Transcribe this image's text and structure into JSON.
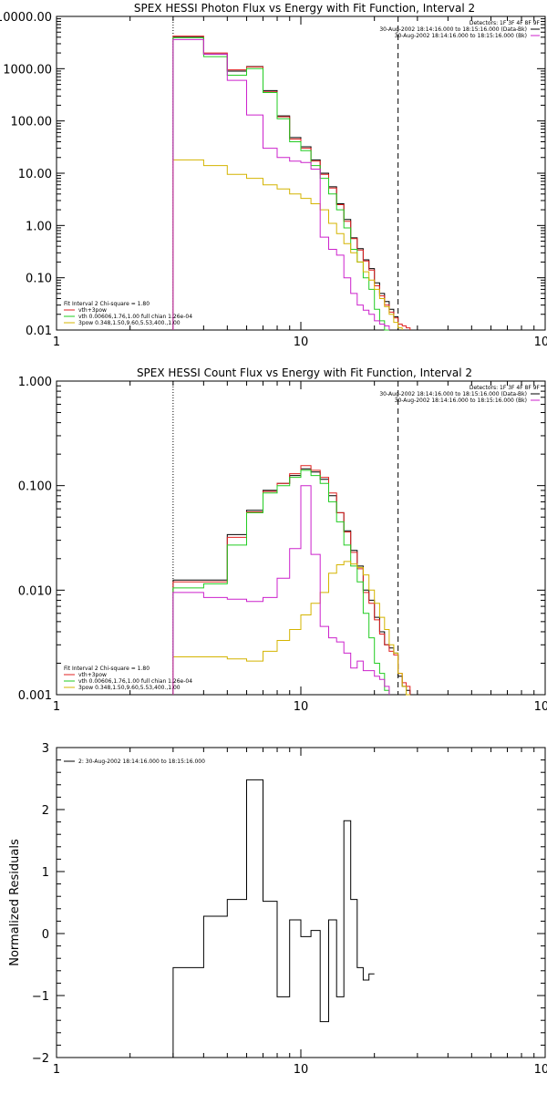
{
  "chart_data": [
    {
      "type": "line",
      "title": "SPEX HESSI Photon Flux vs Energy with Fit Function, Interval 2",
      "xscale": "log",
      "yscale": "log",
      "xlim": [
        1,
        100
      ],
      "ylim": [
        0.01,
        10000
      ],
      "x_tick_labels": [
        "1",
        "10",
        "100"
      ],
      "y_tick_labels": [
        "0.01",
        "0.10",
        "1.00",
        "10.00",
        "100.00",
        "1000.00",
        "10000.00"
      ],
      "info_lines": [
        "Detectors: 1F 3F 4F 8F 9F",
        "30-Aug-2002 18:14:16.000 to 18:15:16.000 (Data-Bk)",
        "30-Aug-2002 18:14:16.000 to 18:15:16.000 (Bk)"
      ],
      "legend_lines": [
        "Fit Interval  2   Chi-square = 1.80",
        "vth+3pow",
        "vth 0.00606,1.76,1.00  full chian 1.26e-04",
        "3pow 0.348,1.50,9.60,5.53,400.,1.00"
      ],
      "legend_colors": [
        "#000000",
        "#e02020",
        "#22cc22",
        "#d4b400"
      ],
      "vlines": [
        3,
        25
      ],
      "edges": [
        3,
        4,
        5,
        6,
        7,
        8,
        9,
        10,
        11,
        12,
        13,
        14,
        15,
        16,
        17,
        18,
        19,
        20,
        21,
        22,
        23,
        24,
        25,
        26,
        27,
        28,
        29,
        30
      ],
      "series": [
        {
          "role": "data",
          "color": "#000000",
          "values": [
            4000,
            1900,
            900,
            1100,
            380,
            125,
            48,
            32,
            18,
            10,
            5.5,
            2.6,
            1.3,
            0.58,
            0.36,
            0.22,
            0.15,
            0.08,
            0.05,
            0.035,
            0.025,
            0.018,
            null,
            null,
            null,
            null,
            null
          ]
        },
        {
          "role": "model",
          "color": "#e02020",
          "values": [
            4200,
            2000,
            950,
            1080,
            360,
            120,
            45,
            30,
            17,
            9.5,
            5.2,
            2.5,
            1.2,
            0.56,
            0.34,
            0.21,
            0.14,
            0.07,
            0.045,
            0.03,
            0.022,
            0.017,
            0.013,
            0.012,
            0.011,
            null,
            null
          ]
        },
        {
          "role": "vth",
          "color": "#22cc22",
          "values": [
            3900,
            1700,
            750,
            1000,
            350,
            110,
            40,
            27,
            14,
            8,
            4,
            2,
            0.9,
            0.35,
            0.2,
            0.1,
            0.06,
            0.025,
            0.015,
            0.01,
            null,
            null,
            null,
            null,
            null,
            null,
            null
          ]
        },
        {
          "role": "pow",
          "color": "#d4b400",
          "values": [
            18,
            14,
            9.5,
            8,
            6,
            5,
            4,
            3.3,
            2.6,
            2,
            1.1,
            0.7,
            0.45,
            0.3,
            0.2,
            0.13,
            0.09,
            0.06,
            0.04,
            0.028,
            0.02,
            0.014,
            0.011,
            null,
            null,
            null,
            null
          ]
        },
        {
          "role": "bk",
          "color": "#cc22cc",
          "values": [
            3600,
            1900,
            600,
            130,
            30,
            20,
            17,
            16,
            12,
            0.6,
            0.35,
            0.27,
            0.1,
            0.05,
            0.03,
            0.024,
            0.02,
            0.015,
            0.013,
            0.012,
            null,
            null,
            null,
            null,
            null,
            null,
            null
          ]
        }
      ]
    },
    {
      "type": "line",
      "title": "SPEX HESSI Count Flux vs Energy with Fit Function, Interval 2",
      "xscale": "log",
      "yscale": "log",
      "xlim": [
        1,
        100
      ],
      "ylim": [
        0.001,
        1
      ],
      "x_tick_labels": [
        "1",
        "10",
        "100"
      ],
      "y_tick_labels": [
        "0.001",
        "0.010",
        "0.100",
        "1.000"
      ],
      "info_lines": [
        "Detectors: 1F 3F 4F 8F 9F",
        "30-Aug-2002 18:14:16.000 to 18:15:16.000 (Data-Bk)",
        "30-Aug-2002 18:14:16.000 to 18:15:16.000 (Bk)"
      ],
      "legend_lines": [
        "Fit Interval  2   Chi-square = 1.80",
        "vth+3pow",
        "vth 0.00606,1.76,1.00  full chian 1.26e-04",
        "3pow 0.348,1.50,9.60,5.53,400.,1.00"
      ],
      "legend_colors": [
        "#000000",
        "#e02020",
        "#22cc22",
        "#d4b400"
      ],
      "vlines": [
        3,
        25
      ],
      "edges": [
        3,
        4,
        5,
        6,
        7,
        8,
        9,
        10,
        11,
        12,
        13,
        14,
        15,
        16,
        17,
        18,
        19,
        20,
        21,
        22,
        23,
        24,
        25,
        26,
        27,
        28,
        29,
        30
      ],
      "series": [
        {
          "role": "data",
          "color": "#000000",
          "values": [
            0.0125,
            0.0125,
            0.034,
            0.058,
            0.09,
            0.105,
            0.125,
            0.145,
            0.135,
            0.115,
            0.08,
            0.055,
            0.037,
            0.024,
            0.017,
            0.01,
            0.008,
            0.0055,
            0.004,
            0.003,
            0.0028,
            0.0025,
            0.0015,
            0.0012,
            0.0011,
            null,
            null
          ]
        },
        {
          "role": "model",
          "color": "#e02020",
          "values": [
            0.012,
            0.012,
            0.032,
            0.056,
            0.088,
            0.105,
            0.13,
            0.155,
            0.14,
            0.12,
            0.085,
            0.055,
            0.036,
            0.023,
            0.016,
            0.0095,
            0.0075,
            0.0052,
            0.0038,
            0.003,
            0.0026,
            0.0024,
            0.0016,
            0.0013,
            0.0012,
            null,
            null
          ]
        },
        {
          "role": "vth",
          "color": "#22cc22",
          "values": [
            0.0105,
            0.0115,
            0.027,
            0.055,
            0.085,
            0.1,
            0.12,
            0.14,
            0.125,
            0.105,
            0.07,
            0.045,
            0.027,
            0.017,
            0.012,
            0.006,
            0.0035,
            0.002,
            0.0016,
            0.0011,
            null,
            null,
            null,
            null,
            null,
            null,
            null
          ]
        },
        {
          "role": "pow",
          "color": "#d4b400",
          "values": [
            0.0023,
            0.0023,
            0.0022,
            0.0021,
            0.0026,
            0.0033,
            0.0042,
            0.0058,
            0.0075,
            0.0095,
            0.0145,
            0.0175,
            0.0188,
            0.0178,
            0.0165,
            0.014,
            0.01,
            0.0075,
            0.0055,
            0.0042,
            0.003,
            0.0025,
            0.0016,
            0.0012,
            0.001,
            null,
            null
          ]
        },
        {
          "role": "bk",
          "color": "#cc22cc",
          "values": [
            0.0095,
            0.0085,
            0.0082,
            0.0078,
            0.0085,
            0.013,
            0.025,
            0.1,
            0.022,
            0.0045,
            0.0035,
            0.0032,
            0.0025,
            0.0018,
            0.0021,
            0.0017,
            0.0017,
            0.0015,
            0.0014,
            0.0012,
            null,
            null,
            null,
            null,
            null,
            null,
            null
          ]
        }
      ]
    },
    {
      "type": "line",
      "title": "",
      "ylabel": "Normalized Residuals",
      "xscale": "log",
      "yscale": "linear",
      "xlim": [
        1,
        100
      ],
      "ylim": [
        -2,
        3
      ],
      "x_tick_labels": [
        "1",
        "10",
        "100"
      ],
      "y_tick_labels": [
        "−2",
        "−1",
        "0",
        "1",
        "2",
        "3"
      ],
      "legend_lines": [
        "2: 30-Aug-2002 18:14:16.000 to 18:15:16.000"
      ],
      "legend_colors": [
        "#000000"
      ],
      "edges": [
        3,
        4,
        5,
        6,
        7,
        8,
        9,
        10,
        11,
        12,
        13,
        14,
        15,
        16,
        17,
        18,
        19,
        20,
        21,
        22,
        23,
        24,
        25,
        26
      ],
      "series": [
        {
          "role": "residuals",
          "color": "#000000",
          "values": [
            -0.55,
            0.28,
            0.55,
            2.48,
            0.52,
            -1.02,
            0.22,
            -0.05,
            0.05,
            -1.42,
            0.22,
            -1.02,
            1.82,
            0.55,
            -0.55,
            -0.75,
            -0.65
          ]
        }
      ]
    }
  ]
}
